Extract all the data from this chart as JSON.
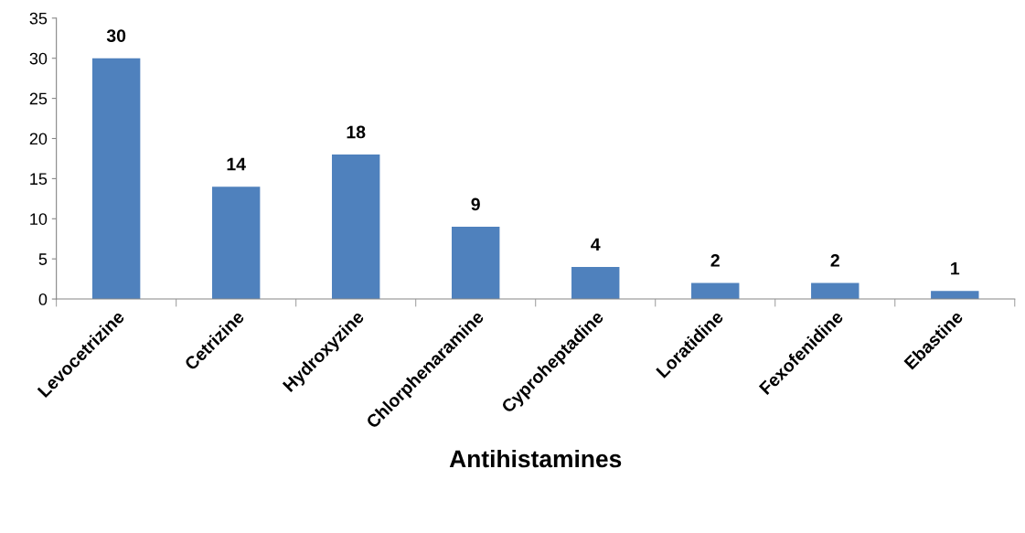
{
  "chart_data": {
    "type": "bar",
    "xlabel": "Antihistamines",
    "categories": [
      "Levocetrizine",
      "Cetrizine",
      "Hydroxyzine",
      "Chlorphenaramine",
      "Cyproheptadine",
      "Loratidine",
      "Fexofenidine",
      "Ebastine"
    ],
    "values": [
      30,
      14,
      18,
      9,
      4,
      2,
      2,
      1
    ],
    "color": "#4f81bd",
    "ylim": [
      0,
      35
    ],
    "yticks": [
      0,
      5,
      10,
      15,
      20,
      25,
      30,
      35
    ],
    "grid": false,
    "data_labels": true
  }
}
